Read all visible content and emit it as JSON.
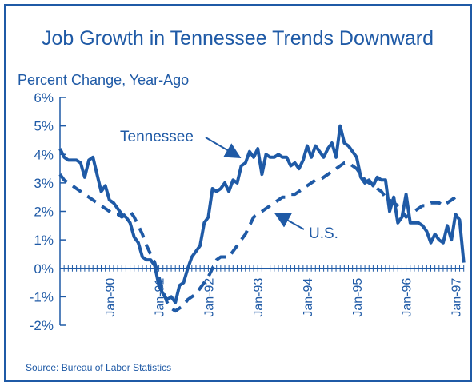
{
  "chart_data": {
    "type": "line",
    "title": "Job Growth in Tennessee Trends Downward",
    "ylabel": "Percent Change, Year-Ago",
    "source": "Source:  Bureau of Labor Statistics",
    "categories": [
      null,
      null,
      null,
      null,
      null,
      null,
      null,
      null,
      null,
      null,
      null,
      null,
      "Jan-90",
      null,
      null,
      null,
      null,
      null,
      null,
      null,
      null,
      null,
      null,
      null,
      "Jan-91",
      null,
      null,
      null,
      null,
      null,
      null,
      null,
      null,
      null,
      null,
      null,
      "Jan-92",
      null,
      null,
      null,
      null,
      null,
      null,
      null,
      null,
      null,
      null,
      null,
      "Jan-93",
      null,
      null,
      null,
      null,
      null,
      null,
      null,
      null,
      null,
      null,
      null,
      "Jan-94",
      null,
      null,
      null,
      null,
      null,
      null,
      null,
      null,
      null,
      null,
      null,
      "Jan-95",
      null,
      null,
      null,
      null,
      null,
      null,
      null,
      null,
      null,
      null,
      null,
      "Jan-96",
      null,
      null,
      null,
      null,
      null,
      null,
      null,
      null,
      null,
      null,
      null,
      "Jan-97",
      null,
      null
    ],
    "series": [
      {
        "name": "Tennessee",
        "color": "#1f5aa6",
        "dashed": false,
        "values": [
          4.2,
          3.9,
          3.8,
          3.8,
          3.8,
          3.7,
          3.2,
          3.8,
          3.9,
          3.3,
          2.7,
          2.9,
          2.4,
          2.3,
          2.1,
          1.9,
          1.8,
          1.6,
          1.1,
          0.9,
          0.4,
          0.3,
          0.3,
          0.1,
          -0.6,
          -0.9,
          -1.1,
          -1.0,
          -1.2,
          -0.6,
          -0.5,
          0.0,
          0.4,
          0.6,
          0.8,
          1.6,
          1.8,
          2.8,
          2.7,
          2.8,
          3.0,
          2.7,
          3.1,
          3.0,
          3.6,
          3.7,
          4.1,
          3.9,
          4.2,
          3.3,
          4.0,
          3.9,
          3.9,
          4.0,
          3.9,
          3.9,
          3.6,
          3.7,
          3.5,
          3.8,
          4.3,
          3.9,
          4.3,
          4.1,
          3.9,
          4.2,
          4.4,
          3.9,
          5.0,
          4.4,
          4.3,
          4.1,
          3.9,
          3.2,
          3.0,
          3.1,
          2.9,
          3.2,
          3.1,
          3.1,
          2.0,
          2.5,
          1.6,
          1.8,
          2.6,
          1.6,
          1.6,
          1.6,
          1.5,
          1.3,
          0.9,
          1.2,
          1.0,
          0.9,
          1.5,
          1.0,
          1.9,
          1.7,
          0.2
        ]
      },
      {
        "name": "U.S.",
        "color": "#1f5aa6",
        "dashed": true,
        "values": [
          3.3,
          3.1,
          3.0,
          2.9,
          2.8,
          2.7,
          2.6,
          2.5,
          2.4,
          2.3,
          2.2,
          2.1,
          2.0,
          1.9,
          1.9,
          1.8,
          1.9,
          2.0,
          1.8,
          1.5,
          1.2,
          0.8,
          0.5,
          0.2,
          -0.3,
          -0.8,
          -1.2,
          -1.4,
          -1.5,
          -1.4,
          -1.3,
          -1.1,
          -1.0,
          -0.9,
          -0.7,
          -0.5,
          -0.3,
          0.0,
          0.3,
          0.4,
          0.4,
          0.4,
          0.6,
          0.8,
          1.0,
          1.2,
          1.5,
          1.8,
          1.9,
          2.0,
          2.1,
          2.2,
          2.3,
          2.4,
          2.5,
          2.5,
          2.6,
          2.6,
          2.7,
          2.8,
          2.9,
          3.0,
          3.1,
          3.1,
          3.2,
          3.3,
          3.4,
          3.5,
          3.6,
          3.7,
          3.7,
          3.6,
          3.5,
          3.3,
          3.1,
          3.0,
          2.9,
          2.8,
          2.7,
          2.5,
          2.4,
          2.3,
          2.2,
          2.0,
          1.8,
          1.9,
          2.0,
          2.1,
          2.2,
          2.2,
          2.3,
          2.3,
          2.3,
          2.2,
          2.3,
          2.4,
          2.5,
          2.5,
          null
        ]
      }
    ],
    "ylim": [
      -2,
      6
    ],
    "yticks": [
      {
        "value": 6,
        "label": "6%"
      },
      {
        "value": 5,
        "label": "5%"
      },
      {
        "value": 4,
        "label": "4%"
      },
      {
        "value": 3,
        "label": "3%"
      },
      {
        "value": 2,
        "label": "2%"
      },
      {
        "value": 1,
        "label": "1%"
      },
      {
        "value": 0,
        "label": "0%"
      },
      {
        "value": -1,
        "label": "-1%"
      },
      {
        "value": -2,
        "label": "-2%"
      }
    ],
    "grid": false
  }
}
